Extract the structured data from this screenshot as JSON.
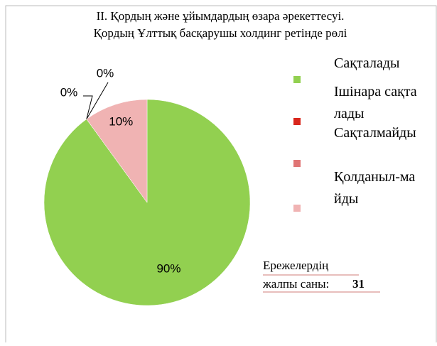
{
  "chart_data": {
    "type": "pie",
    "title": [
      "II. Қордың және ұйымдардың өзара әрекеттесуі.",
      "Қордың Ұлттық басқарушы холдинг ретінде рөлі"
    ],
    "categories": [
      "Сақталады",
      "Ішінара сақталады",
      "Сақталмайды",
      "Қолданыл-майды"
    ],
    "values": [
      90,
      0,
      0,
      10
    ],
    "value_labels": [
      "90%",
      "0%",
      "0%",
      "10%"
    ],
    "colors": [
      "#92d050",
      "#d9261c",
      "#e07575",
      "#f0b3b3"
    ],
    "note": {
      "text": "Ережелердің жалпы саны:",
      "total": 31
    }
  }
}
